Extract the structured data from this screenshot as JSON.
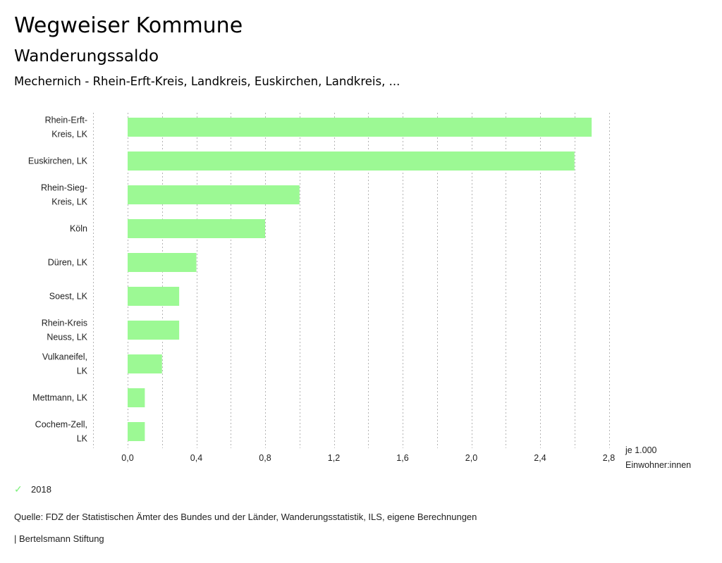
{
  "header": {
    "title": "Wegweiser Kommune",
    "subtitle": "Wanderungssaldo",
    "region": "Mechernich - Rhein-Erft-Kreis, Landkreis, Euskirchen, Landkreis, ..."
  },
  "chart_data": {
    "type": "bar",
    "orientation": "horizontal",
    "title": "Wanderungssaldo",
    "categories": [
      [
        "Rhein-Erft-",
        "Kreis, LK"
      ],
      [
        "Euskirchen, LK"
      ],
      [
        "Rhein-Sieg-",
        "Kreis, LK"
      ],
      [
        "Köln"
      ],
      [
        "Düren, LK"
      ],
      [
        "Soest, LK"
      ],
      [
        "Rhein-Kreis",
        "Neuss, LK"
      ],
      [
        "Vulkaneifel,",
        "LK"
      ],
      [
        "Mettmann, LK"
      ],
      [
        "Cochem-Zell,",
        "LK"
      ]
    ],
    "series": [
      {
        "name": "2018",
        "color": "#9cf994",
        "values": [
          2.7,
          2.6,
          1.0,
          0.8,
          0.4,
          0.3,
          0.3,
          0.2,
          0.1,
          0.1
        ]
      }
    ],
    "xlim": [
      -0.2,
      2.8
    ],
    "xticks": [
      0.0,
      0.4,
      0.8,
      1.2,
      1.6,
      2.0,
      2.4,
      2.8
    ],
    "xtick_labels": [
      "0,0",
      "0,4",
      "0,8",
      "1,2",
      "1,6",
      "2,0",
      "2,4",
      "2,8"
    ],
    "grid_step": 0.2,
    "grid": true,
    "xlabel": [
      "je 1.000",
      "Einwohner:innen"
    ],
    "legend_position": "bottom-left"
  },
  "legend": {
    "label": "2018",
    "icon": "check-icon"
  },
  "footer": {
    "source": "Quelle: FDZ der Statistischen Ämter des Bundes und der Länder, Wanderungsstatistik, ILS, eigene Berechnungen",
    "credit": "| Bertelsmann Stiftung"
  }
}
